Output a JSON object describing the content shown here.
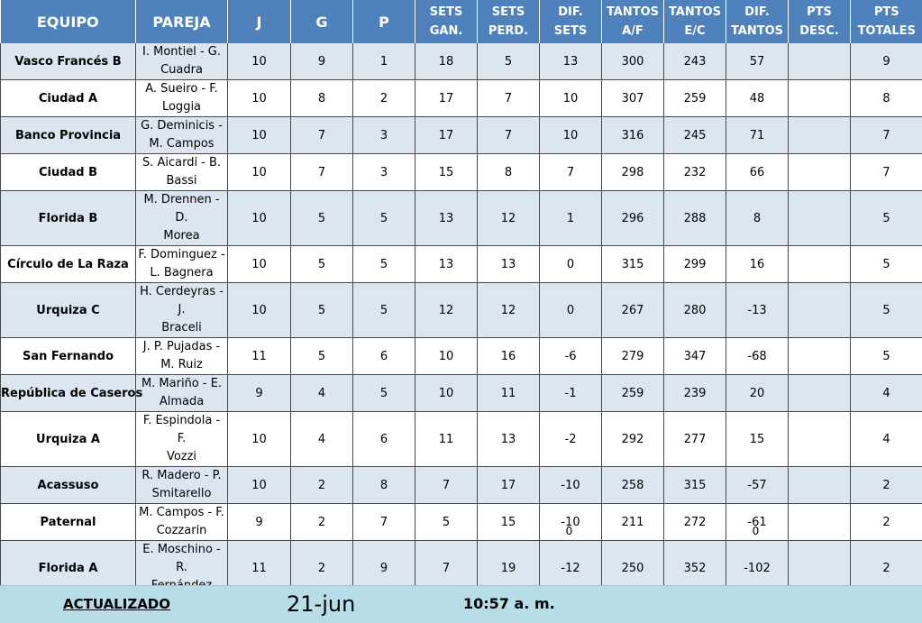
{
  "headers": {
    "equipo": "EQUIPO",
    "pareja": "PAREJA",
    "j": "J",
    "g": "G",
    "p": "P",
    "sets_gan_1": "SETS",
    "sets_gan_2": "GAN.",
    "sets_perd_1": "SETS",
    "sets_perd_2": "PERD.",
    "dif_sets": "DIF. SETS",
    "tantos_af_1": "TANTOS",
    "tantos_af_2": "A/F",
    "tantos_ec_1": "TANTOS",
    "tantos_ec_2": "E/C",
    "dif_tantos_1": "DIF.",
    "dif_tantos_2": "TANTOS",
    "pts_desc_1": "PTS",
    "pts_desc_2": "DESC.",
    "pts_totales_1": "PTS",
    "pts_totales_2": "TOTALES"
  },
  "rows": [
    {
      "equipo": "Vasco Francés B",
      "pareja_1": "I. Montiel - G.",
      "pareja_2": "Cuadra",
      "j": "10",
      "g": "9",
      "p": "1",
      "sets_gan": "18",
      "sets_perd": "5",
      "dif_sets": "13",
      "tantos_af": "300",
      "tantos_ec": "243",
      "dif_tantos": "57",
      "pts_desc": "",
      "pts_totales": "9"
    },
    {
      "equipo": "Ciudad A",
      "pareja_1": "A. Sueiro - F.",
      "pareja_2": "Loggia",
      "j": "10",
      "g": "8",
      "p": "2",
      "sets_gan": "17",
      "sets_perd": "7",
      "dif_sets": "10",
      "tantos_af": "307",
      "tantos_ec": "259",
      "dif_tantos": "48",
      "pts_desc": "",
      "pts_totales": "8"
    },
    {
      "equipo": "Banco Provincia",
      "pareja_1": "G. Deminicis -",
      "pareja_2": "M. Campos",
      "j": "10",
      "g": "7",
      "p": "3",
      "sets_gan": "17",
      "sets_perd": "7",
      "dif_sets": "10",
      "tantos_af": "316",
      "tantos_ec": "245",
      "dif_tantos": "71",
      "pts_desc": "",
      "pts_totales": "7"
    },
    {
      "equipo": "Ciudad B",
      "pareja_1": "S. Aicardi - B.",
      "pareja_2": "Bassi",
      "j": "10",
      "g": "7",
      "p": "3",
      "sets_gan": "15",
      "sets_perd": "8",
      "dif_sets": "7",
      "tantos_af": "298",
      "tantos_ec": "232",
      "dif_tantos": "66",
      "pts_desc": "",
      "pts_totales": "7"
    },
    {
      "equipo": "Florida B",
      "pareja_1": "M. Drennen - D.",
      "pareja_2": "Morea",
      "j": "10",
      "g": "5",
      "p": "5",
      "sets_gan": "13",
      "sets_perd": "12",
      "dif_sets": "1",
      "tantos_af": "296",
      "tantos_ec": "288",
      "dif_tantos": "8",
      "pts_desc": "",
      "pts_totales": "5"
    },
    {
      "equipo": "Círculo de La Raza",
      "pareja_1": "F. Dominguez -",
      "pareja_2": "L. Bagnera",
      "j": "10",
      "g": "5",
      "p": "5",
      "sets_gan": "13",
      "sets_perd": "13",
      "dif_sets": "0",
      "tantos_af": "315",
      "tantos_ec": "299",
      "dif_tantos": "16",
      "pts_desc": "",
      "pts_totales": "5"
    },
    {
      "equipo": "Urquiza C",
      "pareja_1": "H. Cerdeyras - J.",
      "pareja_2": "Braceli",
      "j": "10",
      "g": "5",
      "p": "5",
      "sets_gan": "12",
      "sets_perd": "12",
      "dif_sets": "0",
      "tantos_af": "267",
      "tantos_ec": "280",
      "dif_tantos": "-13",
      "pts_desc": "",
      "pts_totales": "5"
    },
    {
      "equipo": "San Fernando",
      "pareja_1": "J. P. Pujadas -",
      "pareja_2": "M. Ruiz",
      "j": "11",
      "g": "5",
      "p": "6",
      "sets_gan": "10",
      "sets_perd": "16",
      "dif_sets": "-6",
      "tantos_af": "279",
      "tantos_ec": "347",
      "dif_tantos": "-68",
      "pts_desc": "",
      "pts_totales": "5"
    },
    {
      "equipo": "República de Caseros",
      "pareja_1": "M. Mariño - E.",
      "pareja_2": "Almada",
      "j": "9",
      "g": "4",
      "p": "5",
      "sets_gan": "10",
      "sets_perd": "11",
      "dif_sets": "-1",
      "tantos_af": "259",
      "tantos_ec": "239",
      "dif_tantos": "20",
      "pts_desc": "",
      "pts_totales": "4"
    },
    {
      "equipo": "Urquiza A",
      "pareja_1": "F. Espindola - F.",
      "pareja_2": "Vozzi",
      "j": "10",
      "g": "4",
      "p": "6",
      "sets_gan": "11",
      "sets_perd": "13",
      "dif_sets": "-2",
      "tantos_af": "292",
      "tantos_ec": "277",
      "dif_tantos": "15",
      "pts_desc": "",
      "pts_totales": "4"
    },
    {
      "equipo": "Acassuso",
      "pareja_1": "R. Madero - P.",
      "pareja_2": "Smitarello",
      "j": "10",
      "g": "2",
      "p": "8",
      "sets_gan": "7",
      "sets_perd": "17",
      "dif_sets": "-10",
      "tantos_af": "258",
      "tantos_ec": "315",
      "dif_tantos": "-57",
      "pts_desc": "",
      "pts_totales": "2"
    },
    {
      "equipo": "Paternal",
      "pareja_1": "M. Campos - F.",
      "pareja_2": "Cozzarin",
      "j": "9",
      "g": "2",
      "p": "7",
      "sets_gan": "5",
      "sets_perd": "15",
      "dif_sets": "-10",
      "tantos_af": "211",
      "tantos_ec": "272",
      "dif_tantos": "-61",
      "pts_desc": "",
      "pts_totales": "2"
    },
    {
      "equipo": "Florida A",
      "pareja_1": "E. Moschino - R.",
      "pareja_2": "Fernández",
      "j": "11",
      "g": "2",
      "p": "9",
      "sets_gan": "7",
      "sets_perd": "19",
      "dif_sets": "-12",
      "tantos_af": "250",
      "tantos_ec": "352",
      "dif_tantos": "-102",
      "pts_desc": "",
      "pts_totales": "2"
    }
  ],
  "totals": {
    "dif_sets": "0",
    "dif_tantos": "0"
  },
  "footer": {
    "label": "ACTUALIZADO",
    "date": "21-jun",
    "time": "10:57 a. m."
  },
  "colors": {
    "header_bg": "#4f81bd",
    "row_alt_bg": "#dce6f1",
    "footer_bg": "#b7dde8"
  }
}
